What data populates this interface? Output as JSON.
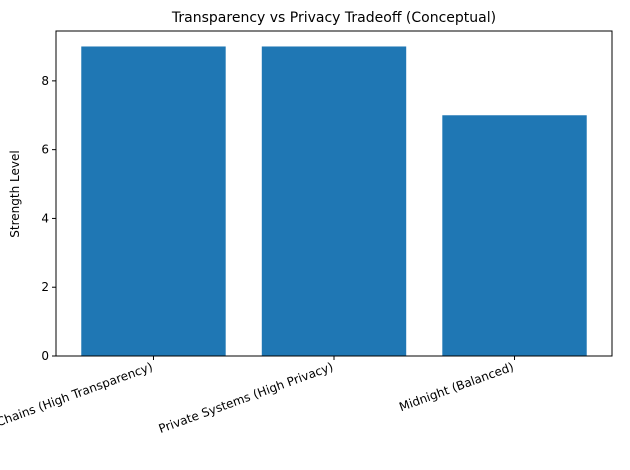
{
  "chart_data": {
    "type": "bar",
    "title": "Transparency vs Privacy Tradeoff (Conceptual)",
    "y_label": "Strength Level",
    "categories": [
      "Public Chains (High Transparency)",
      "Private Systems (High Privacy)",
      "Midnight (Balanced)"
    ],
    "values": [
      9,
      9,
      7
    ],
    "color": "#1f77b4",
    "ylim": [
      0,
      9.45
    ],
    "yticks": [
      0,
      2,
      4,
      6,
      8
    ],
    "grid": false
  }
}
